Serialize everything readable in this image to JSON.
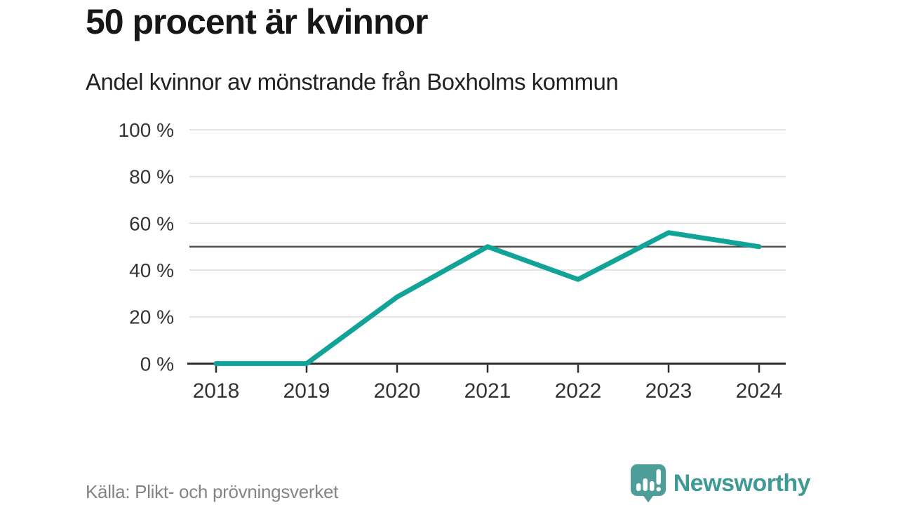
{
  "header": {
    "title": "50 procent är kvinnor",
    "subtitle": "Andel kvinnor av mönstrande från Boxholms kommun"
  },
  "chart_data": {
    "type": "line",
    "title": "50 procent är kvinnor",
    "subtitle": "Andel kvinnor av mönstrande från Boxholms kommun",
    "x": [
      2018,
      2019,
      2020,
      2021,
      2022,
      2023,
      2024
    ],
    "series": [
      {
        "name": "Andel kvinnor av mönstrande",
        "values": [
          0,
          0,
          28.5,
          50,
          36,
          56,
          50
        ]
      }
    ],
    "ylim": [
      0,
      100
    ],
    "y_ticks": [
      0,
      20,
      40,
      60,
      80,
      100
    ],
    "y_tick_suffix": " %",
    "reference_line": 50,
    "grid": true,
    "legend": "none",
    "xlabel": "",
    "ylabel": ""
  },
  "colors": {
    "line_teal": "#12a398",
    "grid_gray": "#dcdcdc",
    "reference_gray": "#4d4d4d",
    "axis_dark": "#2e2e2e",
    "tick_label": "#333333",
    "brand_teal_icon": "#4d9e98",
    "brand_teal_text": "#3d9a94"
  },
  "footer": {
    "source": "Källa: Plikt- och prövningsverket",
    "brand": "Newsworthy"
  }
}
